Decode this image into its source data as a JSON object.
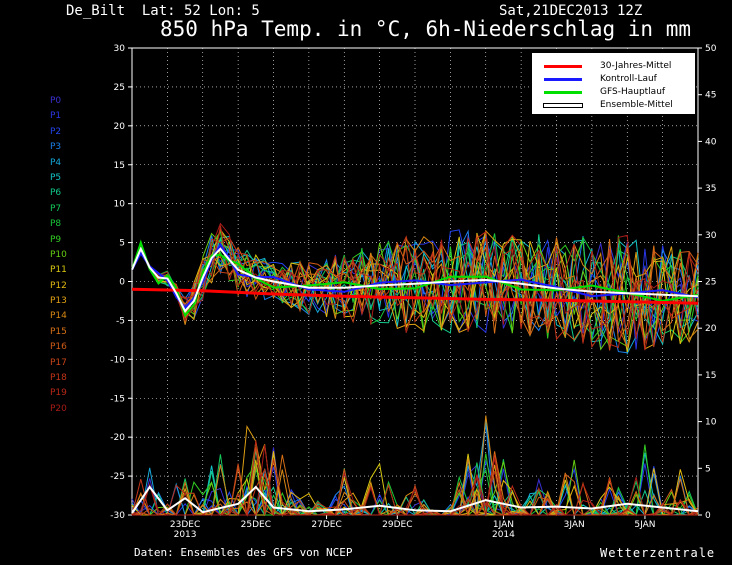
{
  "header": {
    "station": "De_Bilt  Lat: 52 Lon: 5",
    "datetime": "Sat,21DEC2013 12Z",
    "title": "850 hPa Temp. in °C, 6h-Niederschlag in mm"
  },
  "footer": {
    "source": "Daten: Ensembles des GFS von NCEP",
    "brand": "Wetterzentrale"
  },
  "members": [
    {
      "label": "P0",
      "color": "#3a2fd0"
    },
    {
      "label": "P1",
      "color": "#2a37e6"
    },
    {
      "label": "P2",
      "color": "#2245f0"
    },
    {
      "label": "P3",
      "color": "#1b7ee8"
    },
    {
      "label": "P4",
      "color": "#14a6d8"
    },
    {
      "label": "P5",
      "color": "#12c2c4"
    },
    {
      "label": "P6",
      "color": "#12c88a"
    },
    {
      "label": "P7",
      "color": "#14c85a"
    },
    {
      "label": "P8",
      "color": "#18c83a"
    },
    {
      "label": "P9",
      "color": "#30cc22"
    },
    {
      "label": "P10",
      "color": "#66cc12"
    },
    {
      "label": "P11",
      "color": "#d8c810"
    },
    {
      "label": "P12",
      "color": "#e0b810"
    },
    {
      "label": "P13",
      "color": "#e0a012"
    },
    {
      "label": "P14",
      "color": "#d88814"
    },
    {
      "label": "P15",
      "color": "#d87016"
    },
    {
      "label": "P16",
      "color": "#d05a18"
    },
    {
      "label": "P17",
      "color": "#c84418"
    },
    {
      "label": "P18",
      "color": "#c23418"
    },
    {
      "label": "P19",
      "color": "#b82818"
    },
    {
      "label": "P20",
      "color": "#a81c18"
    }
  ],
  "legend": [
    {
      "label": "30-Jahres-Mittel",
      "color": "#ff0000"
    },
    {
      "label": "Kontroll-Lauf",
      "color": "#1a1aff"
    },
    {
      "label": "GFS-Hauptlauf",
      "color": "#00e000"
    },
    {
      "label": "Ensemble-Mittel",
      "color": "#ffffff"
    }
  ],
  "chart_data": {
    "type": "line",
    "title": "850 hPa Temp. in °C, 6h-Niederschlag in mm",
    "x_unit": "days after 21DEC2013 12Z",
    "x_ticks": [
      {
        "x": 1.5,
        "label": "23DEC",
        "sub": "2013"
      },
      {
        "x": 3.5,
        "label": "25DEC"
      },
      {
        "x": 5.5,
        "label": "27DEC"
      },
      {
        "x": 7.5,
        "label": "29DEC"
      },
      {
        "x": 10.5,
        "label": "1JAN",
        "sub": "2014"
      },
      {
        "x": 12.5,
        "label": "3JAN"
      },
      {
        "x": 14.5,
        "label": "5JAN"
      }
    ],
    "xlim": [
      0,
      16
    ],
    "ylim_left": [
      -30,
      30
    ],
    "yticks_left": [
      30,
      25,
      20,
      15,
      10,
      5,
      0,
      -5,
      -10,
      -15,
      -20,
      -25,
      -30
    ],
    "ylim_right": [
      0,
      50
    ],
    "yticks_right": [
      50,
      45,
      40,
      35,
      30,
      25,
      20,
      15,
      10,
      5,
      0
    ],
    "grid": true,
    "legend_position": "top-right",
    "temperature": {
      "climatology_30yr": {
        "x": [
          0,
          2,
          4,
          6,
          8,
          10,
          12,
          14,
          16
        ],
        "y": [
          -1.0,
          -1.2,
          -1.6,
          -1.9,
          -2.1,
          -2.3,
          -2.4,
          -2.6,
          -2.8
        ]
      },
      "ensemble_mean": {
        "x": [
          0,
          0.25,
          0.5,
          0.75,
          1.0,
          1.25,
          1.5,
          1.75,
          2.0,
          2.25,
          2.5,
          2.75,
          3.0,
          3.5,
          4.0,
          5.0,
          6.0,
          7.0,
          8.0,
          9.0,
          10.0,
          11.0,
          12.0,
          13.0,
          14.0,
          15.0,
          16.0
        ],
        "y": [
          1.5,
          4.2,
          1.8,
          0.5,
          0.4,
          -1.5,
          -3.8,
          -2.5,
          0.5,
          3.0,
          4.2,
          2.8,
          1.5,
          0.5,
          0.0,
          -0.8,
          -0.8,
          -0.5,
          -0.3,
          0.0,
          0.2,
          -0.3,
          -0.9,
          -1.3,
          -1.5,
          -1.7,
          -1.9
        ]
      },
      "members_spread": {
        "x": [
          0,
          2,
          4,
          6,
          8,
          10,
          12,
          14,
          16
        ],
        "min": [
          1.5,
          -4.5,
          -1.5,
          -4.0,
          -5.5,
          -6.0,
          -6.5,
          -10.0,
          -8.0
        ],
        "max": [
          1.8,
          5.0,
          3.5,
          5.0,
          7.5,
          7.5,
          7.0,
          5.5,
          3.5
        ]
      }
    },
    "precipitation": {
      "peaks": [
        {
          "x": 0.4,
          "mm": 6.5
        },
        {
          "x": 1.5,
          "mm": 7.0
        },
        {
          "x": 2.4,
          "mm": 8.0
        },
        {
          "x": 3.3,
          "mm": 12.5
        },
        {
          "x": 3.6,
          "mm": 11.0
        },
        {
          "x": 4.1,
          "mm": 9.0
        },
        {
          "x": 5.0,
          "mm": 3.0
        },
        {
          "x": 6.0,
          "mm": 5.0
        },
        {
          "x": 7.0,
          "mm": 7.0
        },
        {
          "x": 8.0,
          "mm": 4.0
        },
        {
          "x": 9.5,
          "mm": 7.0
        },
        {
          "x": 10.0,
          "mm": 12.0
        },
        {
          "x": 10.5,
          "mm": 6.0
        },
        {
          "x": 11.5,
          "mm": 4.5
        },
        {
          "x": 12.5,
          "mm": 8.0
        },
        {
          "x": 13.5,
          "mm": 5.5
        },
        {
          "x": 14.5,
          "mm": 9.0
        },
        {
          "x": 15.5,
          "mm": 5.0
        }
      ],
      "ensemble_mean": {
        "x": [
          0,
          0.5,
          1,
          1.5,
          2,
          3,
          3.5,
          4,
          5,
          6,
          7,
          8,
          9,
          10,
          11,
          12,
          13,
          14,
          15,
          16
        ],
        "mm": [
          0.2,
          3.0,
          0.5,
          1.8,
          0.3,
          1.2,
          3.0,
          0.8,
          0.4,
          0.6,
          1.0,
          0.5,
          0.4,
          1.6,
          0.8,
          0.9,
          0.7,
          1.2,
          0.8,
          0.4
        ]
      }
    }
  }
}
